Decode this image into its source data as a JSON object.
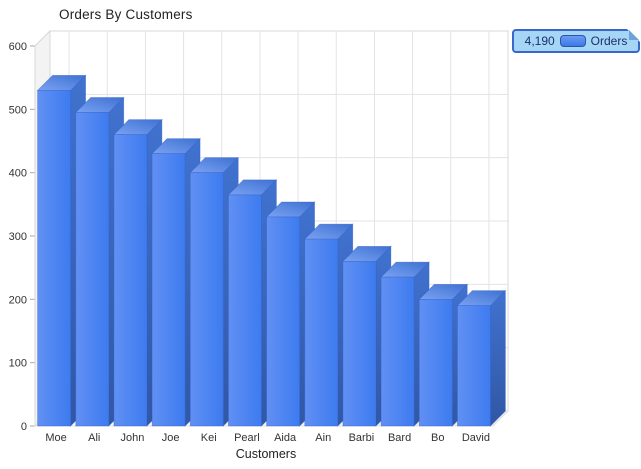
{
  "title": "Orders By Customers",
  "legend": {
    "total": "4,190",
    "series_label": "Orders",
    "bg_color": "#a6d6f6",
    "border_color": "#3a67cc",
    "text_color": "#1c2f6e"
  },
  "chart_data": {
    "type": "bar",
    "projection": "3d",
    "title": "Orders By Customers",
    "xlabel": "Customers",
    "ylabel": "",
    "categories": [
      "Moe",
      "Ali",
      "John",
      "Joe",
      "Kei",
      "Pearl",
      "Aida",
      "Ain",
      "Barbi",
      "Bard",
      "Bo",
      "David"
    ],
    "series": [
      {
        "name": "Orders",
        "values": [
          530,
          495,
          460,
          430,
          400,
          365,
          330,
          295,
          260,
          235,
          200,
          190
        ],
        "total": 4190
      }
    ],
    "ylim": [
      0,
      600
    ],
    "ytick_step": 100,
    "ytick_labels": [
      "0",
      "100",
      "200",
      "300",
      "400",
      "500",
      "600"
    ],
    "grid": true,
    "legend_position": "top-right",
    "colors": {
      "bar_front_left": "#6190f3",
      "bar_front_right": "#3d7bf0",
      "bar_top_front": "#7aa2f2",
      "bar_top_back": "#3e71d2",
      "bar_side_top": "#4072cf",
      "bar_side_bottom": "#3157a5",
      "bar_edge": "#2c5cc5",
      "gridline": "#e3e3e3",
      "wall_fill": "#f3f3f3",
      "wall_edge": "#d8d8d8",
      "tick_text": "#333333",
      "axis_title_text": "#222222"
    }
  }
}
